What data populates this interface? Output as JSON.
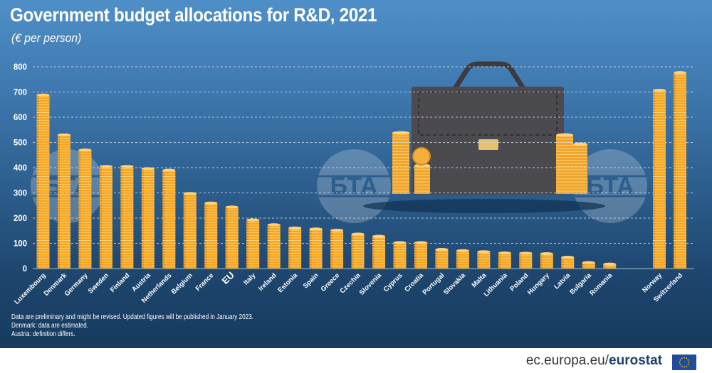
{
  "title": "Government budget allocations for R&D, 2021",
  "subtitle": "(€ per person)",
  "footnotes": [
    "Data are preliminary and might be revised. Updated figures will be published in January 2023.",
    "Denmark: data are estimated.",
    "Austria: definition differs."
  ],
  "footer": {
    "domain": "ec.europa.eu/",
    "brand": "eurostat"
  },
  "colors": {
    "bar": "#f5a623",
    "bar_light": "#ffd27a",
    "bar_dark": "#c97a0c",
    "gridline": "#c9d8e8",
    "text": "#ffffff",
    "briefcase": "#4a4a4f"
  },
  "watermark": "БТА",
  "chart_data": {
    "type": "bar",
    "title": "Government budget allocations for R&D, 2021",
    "subtitle": "(€ per person)",
    "categories": [
      "Luxembourg",
      "Denmark",
      "Germany",
      "Sweden",
      "Finland",
      "Austria",
      "Netherlands",
      "Belgium",
      "France",
      "EU",
      "Italy",
      "Ireland",
      "Estonia",
      "Spain",
      "Greece",
      "Czechia",
      "Slovenia",
      "Cyprus",
      "Croatia",
      "Portugal",
      "Slovakia",
      "Malta",
      "Lithuania",
      "Poland",
      "Hungary",
      "Latvia",
      "Bulgaria",
      "Romania",
      "Norway",
      "Switzerland"
    ],
    "values": [
      688,
      530,
      470,
      405,
      405,
      396,
      390,
      298,
      260,
      244,
      193,
      174,
      161,
      157,
      152,
      137,
      128,
      103,
      103,
      76,
      71,
      67,
      62,
      61,
      59,
      45,
      24,
      18,
      707,
      777
    ],
    "ylim": [
      0,
      800
    ],
    "yticks": [
      0,
      100,
      200,
      300,
      400,
      500,
      600,
      700,
      800
    ],
    "grid": true,
    "legend": "none"
  }
}
